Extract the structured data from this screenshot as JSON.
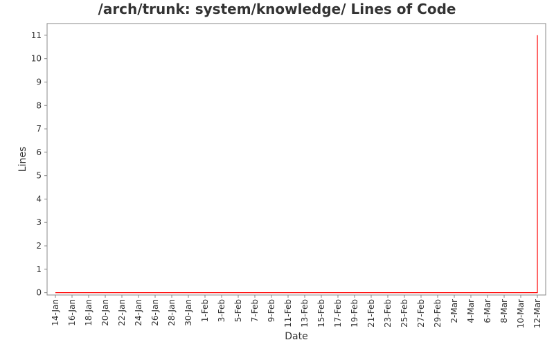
{
  "chart_data": {
    "type": "line",
    "title": "/arch/trunk: system/knowledge/ Lines of Code",
    "xlabel": "Date",
    "ylabel": "Lines",
    "x": [
      "14-Jan",
      "12-Mar",
      "12-Mar"
    ],
    "series": [
      {
        "name": "Lines",
        "color": "#ff0000",
        "values": [
          0,
          0,
          11
        ]
      }
    ],
    "xlim": [
      "13-Jan",
      "13-Mar"
    ],
    "xticks": [
      "14-Jan",
      "16-Jan",
      "18-Jan",
      "20-Jan",
      "22-Jan",
      "24-Jan",
      "26-Jan",
      "28-Jan",
      "30-Jan",
      "1-Feb",
      "3-Feb",
      "5-Feb",
      "7-Feb",
      "9-Feb",
      "11-Feb",
      "13-Feb",
      "15-Feb",
      "17-Feb",
      "19-Feb",
      "21-Feb",
      "23-Feb",
      "25-Feb",
      "27-Feb",
      "29-Feb",
      "2-Mar",
      "4-Mar",
      "6-Mar",
      "8-Mar",
      "10-Mar",
      "12-Mar"
    ],
    "ylim": [
      -0.1,
      11.5
    ],
    "yticks": [
      0,
      1,
      2,
      3,
      4,
      5,
      6,
      7,
      8,
      9,
      10,
      11
    ],
    "grid": false
  }
}
